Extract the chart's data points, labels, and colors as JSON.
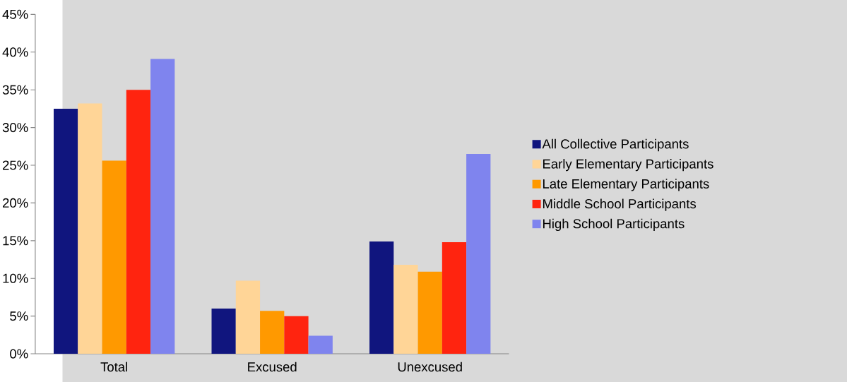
{
  "chart_data": {
    "type": "bar",
    "categories": [
      "Total",
      "Excused",
      "Unexcused"
    ],
    "series": [
      {
        "name": "All Collective Participants",
        "color": "#10157e",
        "values": [
          32.5,
          6.0,
          14.9
        ]
      },
      {
        "name": "Early Elementary Participants",
        "color": "#ffd597",
        "values": [
          33.2,
          9.7,
          11.8
        ]
      },
      {
        "name": "Late Elementary Participants",
        "color": "#ff9900",
        "values": [
          25.6,
          5.7,
          10.9
        ]
      },
      {
        "name": "Middle School Participants",
        "color": "#ff240f",
        "values": [
          35.0,
          5.0,
          14.8
        ]
      },
      {
        "name": "High School Participants",
        "color": "#7f84ee",
        "values": [
          39.1,
          2.4,
          26.5
        ]
      }
    ],
    "ylim": [
      0,
      45
    ],
    "yticks": [
      {
        "value": 0,
        "label": "0%"
      },
      {
        "value": 5,
        "label": "5%"
      },
      {
        "value": 10,
        "label": "10%"
      },
      {
        "value": 15,
        "label": "15%"
      },
      {
        "value": 20,
        "label": "20%"
      },
      {
        "value": 25,
        "label": "25%"
      },
      {
        "value": 30,
        "label": "30%"
      },
      {
        "value": 35,
        "label": "35%"
      },
      {
        "value": 40,
        "label": "40%"
      },
      {
        "value": 45,
        "label": "45%"
      }
    ],
    "grid": false,
    "legend": "right"
  }
}
